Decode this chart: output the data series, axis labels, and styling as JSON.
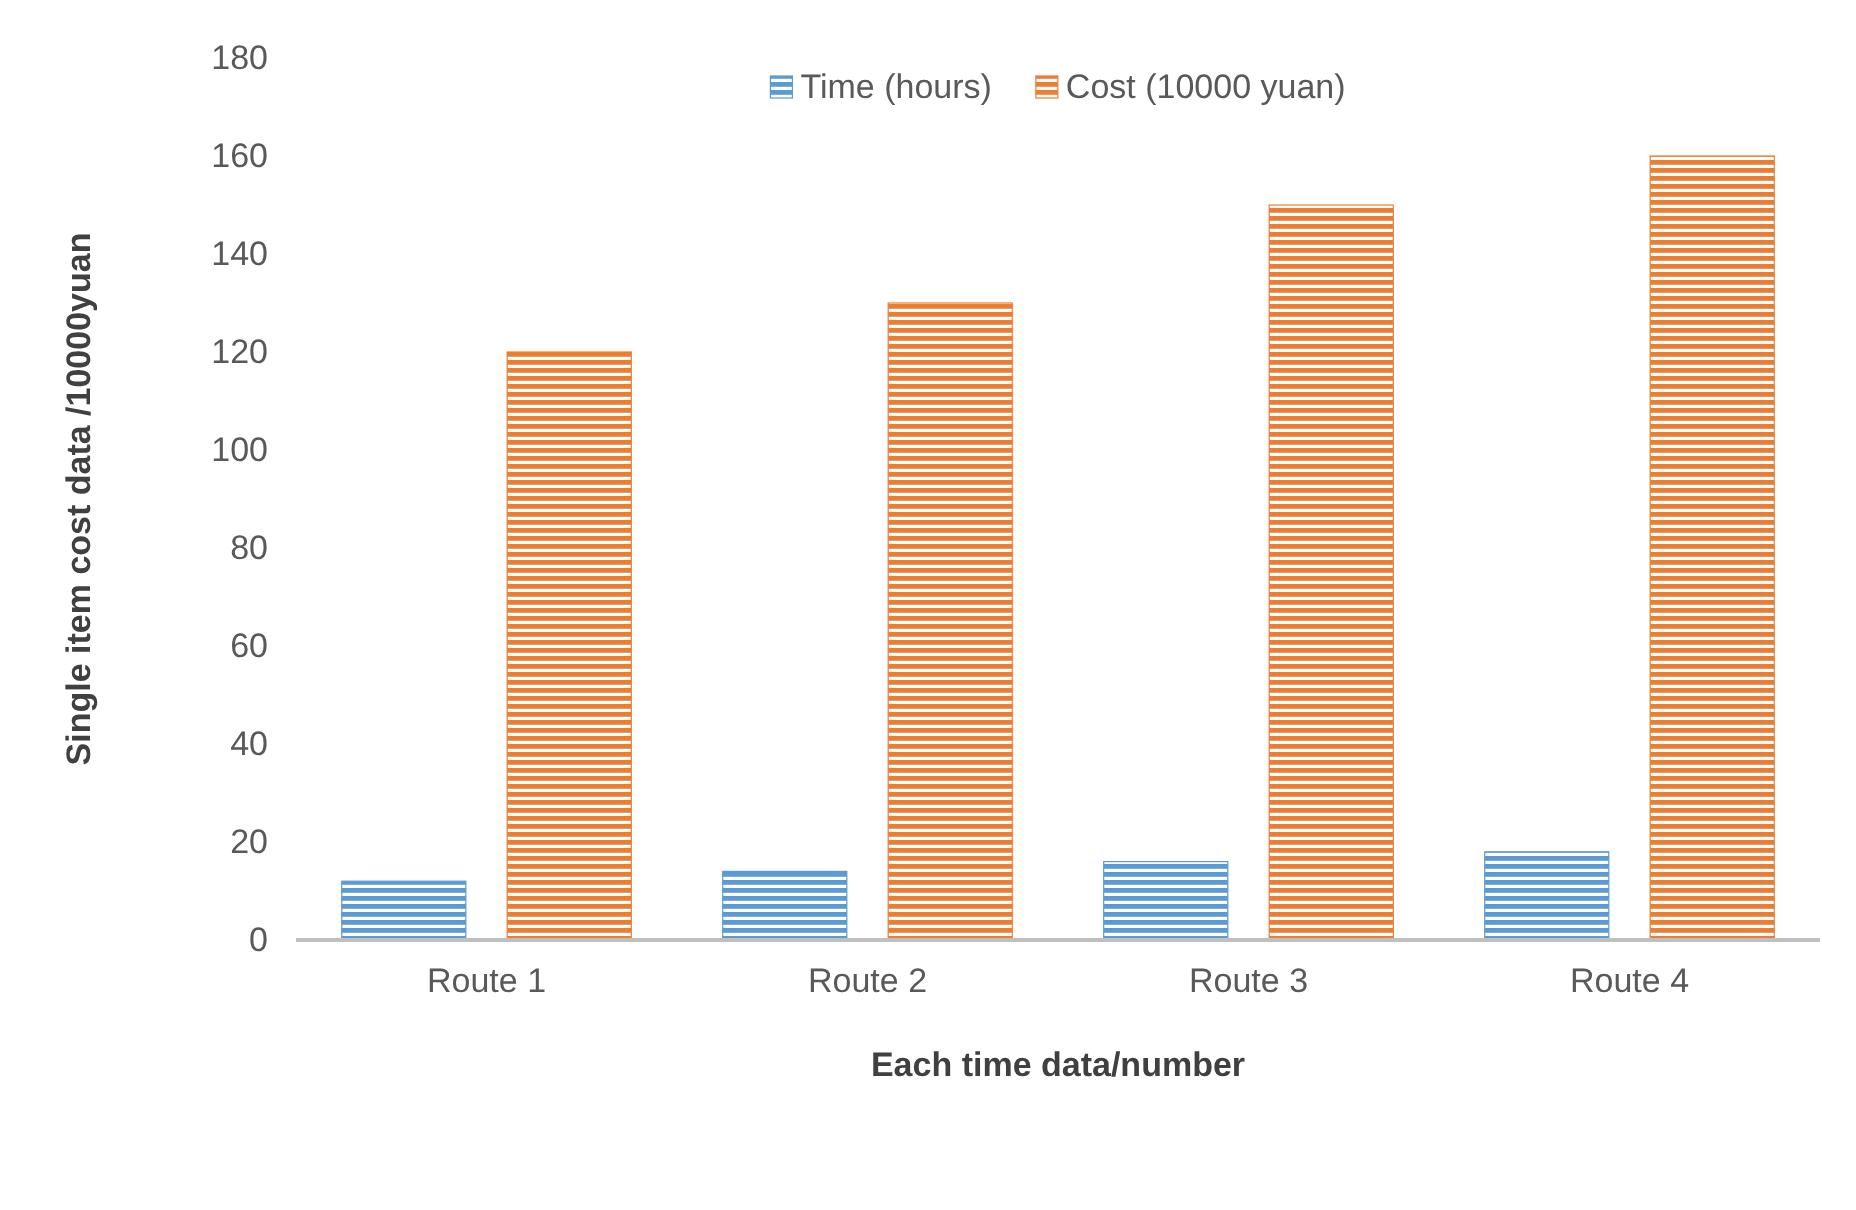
{
  "chart_data": {
    "type": "bar",
    "categories": [
      "Route 1",
      "Route 2",
      "Route 3",
      "Route 4"
    ],
    "series": [
      {
        "name": "Time (hours)",
        "color": "#5b9bd5",
        "values": [
          12,
          14,
          16,
          18
        ]
      },
      {
        "name": "Cost (10000 yuan)",
        "color": "#ed7d31",
        "values": [
          120,
          130,
          150,
          160
        ]
      }
    ],
    "xlabel": "Each time data/number",
    "ylabel": "Single item cost data /10000yuan",
    "ylim": [
      0,
      180
    ],
    "yticks": [
      0,
      20,
      40,
      60,
      80,
      100,
      120,
      140,
      160,
      180
    ],
    "grid": false,
    "legend": "top"
  }
}
